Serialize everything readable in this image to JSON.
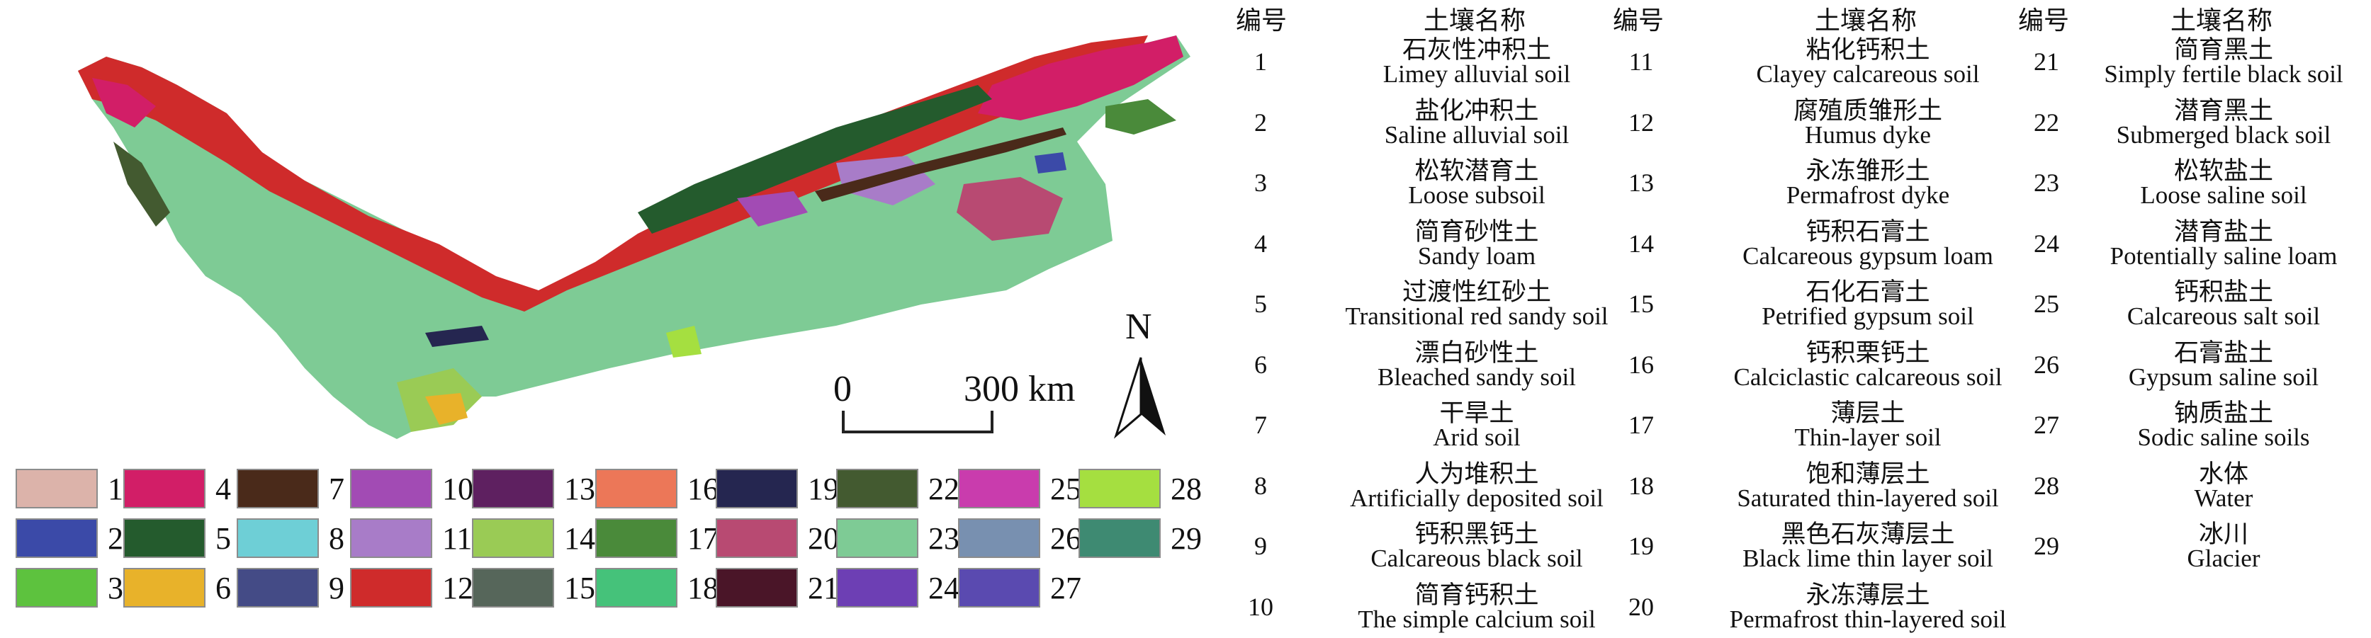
{
  "map": {
    "scale_zero": "0",
    "scale_end": "300 km",
    "north_label": "N"
  },
  "legend": [
    {
      "n": "1",
      "color": "#dcb3aa"
    },
    {
      "n": "2",
      "color": "#3b4aa8"
    },
    {
      "n": "3",
      "color": "#5dc23e"
    },
    {
      "n": "4",
      "color": "#d21e67"
    },
    {
      "n": "5",
      "color": "#245b2d"
    },
    {
      "n": "6",
      "color": "#e8b22a"
    },
    {
      "n": "7",
      "color": "#4a2a1a"
    },
    {
      "n": "8",
      "color": "#6ecfd6"
    },
    {
      "n": "9",
      "color": "#444b86"
    },
    {
      "n": "10",
      "color": "#a24bb4"
    },
    {
      "n": "11",
      "color": "#a87cc8"
    },
    {
      "n": "12",
      "color": "#cf2b2b"
    },
    {
      "n": "13",
      "color": "#5e2060"
    },
    {
      "n": "14",
      "color": "#9acb55"
    },
    {
      "n": "15",
      "color": "#56665a"
    },
    {
      "n": "16",
      "color": "#ec7758"
    },
    {
      "n": "17",
      "color": "#4a8a3a"
    },
    {
      "n": "18",
      "color": "#45c27a"
    },
    {
      "n": "19",
      "color": "#252650"
    },
    {
      "n": "20",
      "color": "#b84a72"
    },
    {
      "n": "21",
      "color": "#4a1528"
    },
    {
      "n": "22",
      "color": "#435a30"
    },
    {
      "n": "23",
      "color": "#7ecb95"
    },
    {
      "n": "24",
      "color": "#6d3fb4"
    },
    {
      "n": "25",
      "color": "#c93cad"
    },
    {
      "n": "26",
      "color": "#7890b0"
    },
    {
      "n": "27",
      "color": "#5a4ab0"
    },
    {
      "n": "28",
      "color": "#a5df40"
    },
    {
      "n": "29",
      "color": "#3e8a72"
    }
  ],
  "table_header": {
    "num": "编号",
    "name": "土壤名称"
  },
  "soils": [
    {
      "n": "1",
      "zh": "石灰性冲积土",
      "en": "Limey alluvial soil"
    },
    {
      "n": "2",
      "zh": "盐化冲积土",
      "en": "Saline alluvial soil"
    },
    {
      "n": "3",
      "zh": "松软潜育土",
      "en": "Loose subsoil"
    },
    {
      "n": "4",
      "zh": "简育砂性土",
      "en": "Sandy loam"
    },
    {
      "n": "5",
      "zh": "过渡性红砂土",
      "en": "Transitional red sandy soil"
    },
    {
      "n": "6",
      "zh": "漂白砂性土",
      "en": "Bleached sandy soil"
    },
    {
      "n": "7",
      "zh": "干旱土",
      "en": "Arid soil"
    },
    {
      "n": "8",
      "zh": "人为堆积土",
      "en": "Artificially deposited soil"
    },
    {
      "n": "9",
      "zh": "钙积黑钙土",
      "en": "Calcareous black soil"
    },
    {
      "n": "10",
      "zh": "简育钙积土",
      "en": "The simple calcium soil"
    },
    {
      "n": "11",
      "zh": "粘化钙积土",
      "en": "Clayey calcareous soil"
    },
    {
      "n": "12",
      "zh": "腐殖质雏形土",
      "en": "Humus dyke"
    },
    {
      "n": "13",
      "zh": "永冻雏形土",
      "en": "Permafrost dyke"
    },
    {
      "n": "14",
      "zh": "钙积石膏土",
      "en": "Calcareous gypsum loam"
    },
    {
      "n": "15",
      "zh": "石化石膏土",
      "en": "Petrified gypsum soil"
    },
    {
      "n": "16",
      "zh": "钙积栗钙土",
      "en": "Calciclastic calcareous soil"
    },
    {
      "n": "17",
      "zh": "薄层土",
      "en": "Thin-layer soil"
    },
    {
      "n": "18",
      "zh": "饱和薄层土",
      "en": "Saturated thin-layered soil"
    },
    {
      "n": "19",
      "zh": "黑色石灰薄层土",
      "en": "Black lime thin layer soil"
    },
    {
      "n": "20",
      "zh": "永冻薄层土",
      "en": "Permafrost thin-layered soil"
    },
    {
      "n": "21",
      "zh": "简育黑土",
      "en": "Simply fertile black soil"
    },
    {
      "n": "22",
      "zh": "潜育黑土",
      "en": "Submerged black soil"
    },
    {
      "n": "23",
      "zh": "松软盐土",
      "en": "Loose saline soil"
    },
    {
      "n": "24",
      "zh": "潜育盐土",
      "en": "Potentially saline loam"
    },
    {
      "n": "25",
      "zh": "钙积盐土",
      "en": "Calcareous salt soil"
    },
    {
      "n": "26",
      "zh": "石膏盐土",
      "en": "Gypsum saline soil"
    },
    {
      "n": "27",
      "zh": "钠质盐土",
      "en": "Sodic saline soils"
    },
    {
      "n": "28",
      "zh": "水体",
      "en": "Water"
    },
    {
      "n": "29",
      "zh": "冰川",
      "en": "Glacier"
    }
  ]
}
